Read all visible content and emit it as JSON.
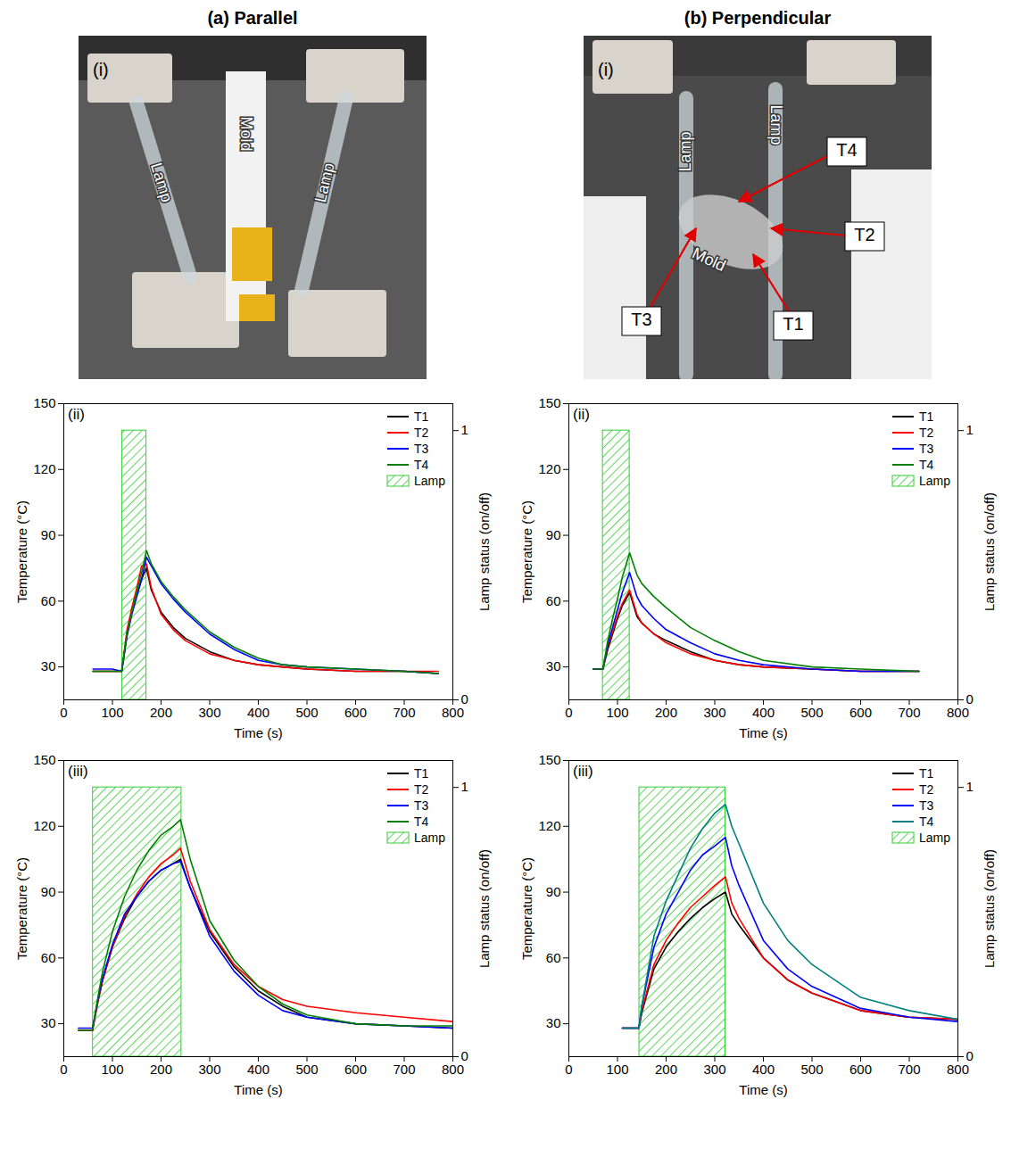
{
  "panel_titles": [
    "(a) Parallel",
    "(b) Perpendicular"
  ],
  "photos": [
    {
      "label": "(i)",
      "lamps": [
        "Lamp",
        "Lamp"
      ],
      "mold": "Mold"
    },
    {
      "label": "(i)",
      "lamps": [
        "Lamp",
        "Lamp"
      ],
      "mold": "Mold",
      "sensors": [
        "T1",
        "T2",
        "T3",
        "T4"
      ]
    }
  ],
  "chart_data": [
    {
      "type": "line",
      "title": "(ii)",
      "xlabel": "Time (s)",
      "ylabel": "Temperature (°C)",
      "y2label": "Lamp status (on/off)",
      "xlim": [
        0,
        800
      ],
      "xticks": [
        0,
        100,
        200,
        300,
        400,
        500,
        600,
        700,
        800
      ],
      "ylim": [
        15,
        150
      ],
      "yticks": [
        30,
        60,
        90,
        120,
        150
      ],
      "y2lim": [
        0,
        1.1
      ],
      "y2ticks": [
        0,
        1
      ],
      "legend": "upper right",
      "x": [
        60,
        100,
        119,
        130,
        140,
        150,
        160,
        170,
        180,
        200,
        225,
        250,
        300,
        350,
        400,
        450,
        500,
        600,
        700,
        770
      ],
      "series": [
        {
          "name": "T1",
          "color": "#000000",
          "values": [
            28,
            28,
            28,
            45,
            55,
            63,
            70,
            75,
            65,
            55,
            48,
            43,
            37,
            33,
            31,
            30,
            29,
            28,
            28,
            27
          ]
        },
        {
          "name": "T2",
          "color": "#ff0000",
          "values": [
            28,
            28,
            28,
            47,
            57,
            66,
            76,
            77,
            66,
            54,
            47,
            42,
            36,
            33,
            31,
            30,
            29,
            28,
            28,
            28
          ]
        },
        {
          "name": "T3",
          "color": "#0000ff",
          "values": [
            29,
            29,
            28,
            44,
            54,
            62,
            70,
            80,
            76,
            68,
            61,
            55,
            45,
            38,
            33,
            31,
            30,
            29,
            28,
            27
          ]
        },
        {
          "name": "T4",
          "color": "#008000",
          "values": [
            28,
            28,
            28,
            45,
            55,
            64,
            73,
            83,
            77,
            69,
            62,
            56,
            46,
            39,
            34,
            31,
            30,
            29,
            28,
            27
          ]
        }
      ],
      "lamp": {
        "name": "Lamp",
        "color": "#33cc33",
        "axis": "y2",
        "x": [
          120,
          170
        ],
        "values": [
          1,
          1
        ]
      }
    },
    {
      "type": "line",
      "title": "(iii)",
      "xlabel": "Time (s)",
      "ylabel": "Temperature (°C)",
      "y2label": "Lamp status (on/off)",
      "xlim": [
        0,
        800
      ],
      "xticks": [
        0,
        100,
        200,
        300,
        400,
        500,
        600,
        700,
        800
      ],
      "ylim": [
        15,
        150
      ],
      "yticks": [
        30,
        60,
        90,
        120,
        150
      ],
      "y2lim": [
        0,
        1.1
      ],
      "y2ticks": [
        0,
        1
      ],
      "legend": "upper right",
      "x": [
        30,
        59,
        70,
        80,
        100,
        125,
        150,
        175,
        200,
        225,
        240,
        260,
        300,
        350,
        400,
        450,
        500,
        600,
        700,
        800
      ],
      "series": [
        {
          "name": "T1",
          "color": "#000000",
          "values": [
            27,
            27,
            40,
            50,
            65,
            78,
            88,
            95,
            100,
            103,
            105,
            92,
            72,
            56,
            45,
            38,
            33,
            30,
            29,
            28
          ]
        },
        {
          "name": "T2",
          "color": "#ff0000",
          "values": [
            27,
            27,
            40,
            50,
            65,
            79,
            89,
            97,
            103,
            107,
            110,
            95,
            73,
            57,
            47,
            41,
            38,
            35,
            33,
            31
          ]
        },
        {
          "name": "T3",
          "color": "#0000ff",
          "values": [
            28,
            28,
            41,
            51,
            66,
            80,
            88,
            95,
            100,
            103,
            104,
            92,
            70,
            54,
            43,
            36,
            33,
            30,
            29,
            28
          ]
        },
        {
          "name": "T4",
          "color": "#008000",
          "values": [
            27,
            27,
            42,
            54,
            72,
            88,
            100,
            109,
            116,
            120,
            123,
            105,
            77,
            59,
            47,
            39,
            34,
            30,
            29,
            29
          ]
        }
      ],
      "lamp": {
        "name": "Lamp",
        "color": "#33cc33",
        "axis": "y2",
        "x": [
          60,
          242
        ],
        "values": [
          1,
          1
        ]
      }
    },
    {
      "type": "line",
      "title": "(ii)",
      "xlabel": "Time (s)",
      "ylabel": "Temperature (°C)",
      "y2label": "Lamp status (on/off)",
      "xlim": [
        0,
        800
      ],
      "xticks": [
        0,
        100,
        200,
        300,
        400,
        500,
        600,
        700,
        800
      ],
      "ylim": [
        15,
        150
      ],
      "yticks": [
        30,
        60,
        90,
        120,
        150
      ],
      "y2lim": [
        0,
        1.1
      ],
      "y2ticks": [
        0,
        1
      ],
      "legend": "upper right",
      "x": [
        50,
        70,
        80,
        90,
        100,
        110,
        125,
        140,
        150,
        175,
        200,
        250,
        300,
        350,
        400,
        500,
        600,
        720
      ],
      "series": [
        {
          "name": "T1",
          "color": "#000000",
          "values": [
            29,
            29,
            38,
            45,
            52,
            58,
            64,
            53,
            50,
            45,
            42,
            37,
            33,
            31,
            30,
            29,
            28,
            28
          ]
        },
        {
          "name": "T2",
          "color": "#ff0000",
          "values": [
            29,
            29,
            39,
            46,
            53,
            59,
            65,
            54,
            50,
            45,
            41,
            36,
            33,
            31,
            30,
            29,
            28,
            28
          ]
        },
        {
          "name": "T3",
          "color": "#0000ff",
          "values": [
            29,
            29,
            40,
            48,
            56,
            64,
            73,
            62,
            58,
            52,
            47,
            41,
            36,
            33,
            31,
            29,
            28,
            28
          ]
        },
        {
          "name": "T4",
          "color": "#008000",
          "values": [
            29,
            29,
            42,
            52,
            61,
            71,
            82,
            72,
            68,
            62,
            57,
            48,
            42,
            37,
            33,
            30,
            29,
            28
          ]
        }
      ],
      "lamp": {
        "name": "Lamp",
        "color": "#33cc33",
        "axis": "y2",
        "x": [
          70,
          125
        ],
        "values": [
          1,
          1
        ]
      }
    },
    {
      "type": "line",
      "title": "(iii)",
      "xlabel": "Time (s)",
      "ylabel": "Temperature (°C)",
      "y2label": "Lamp status (on/off)",
      "xlim": [
        0,
        800
      ],
      "xticks": [
        0,
        100,
        200,
        300,
        400,
        500,
        600,
        700,
        800
      ],
      "ylim": [
        15,
        150
      ],
      "yticks": [
        30,
        60,
        90,
        120,
        150
      ],
      "y2lim": [
        0,
        1.1
      ],
      "y2ticks": [
        0,
        1
      ],
      "legend": "upper right",
      "x": [
        110,
        144,
        150,
        175,
        200,
        225,
        250,
        275,
        300,
        322,
        335,
        350,
        400,
        450,
        500,
        600,
        700,
        800
      ],
      "series": [
        {
          "name": "T1",
          "color": "#000000",
          "values": [
            28,
            28,
            35,
            55,
            65,
            72,
            78,
            83,
            87,
            90,
            80,
            75,
            60,
            50,
            44,
            36,
            33,
            32
          ]
        },
        {
          "name": "T2",
          "color": "#ff0000",
          "values": [
            28,
            28,
            36,
            57,
            68,
            76,
            83,
            88,
            93,
            97,
            85,
            78,
            60,
            50,
            44,
            36,
            33,
            32
          ]
        },
        {
          "name": "T3",
          "color": "#0000ff",
          "values": [
            28,
            28,
            38,
            65,
            80,
            90,
            100,
            107,
            111,
            115,
            102,
            93,
            68,
            55,
            47,
            37,
            33,
            31
          ]
        },
        {
          "name": "T4",
          "color": "#008080",
          "values": [
            28,
            28,
            38,
            70,
            86,
            98,
            110,
            119,
            126,
            130,
            120,
            112,
            85,
            68,
            57,
            42,
            36,
            32
          ]
        }
      ],
      "lamp": {
        "name": "Lamp",
        "color": "#33cc33",
        "axis": "y2",
        "x": [
          145,
          322
        ],
        "values": [
          1,
          1
        ]
      }
    }
  ]
}
